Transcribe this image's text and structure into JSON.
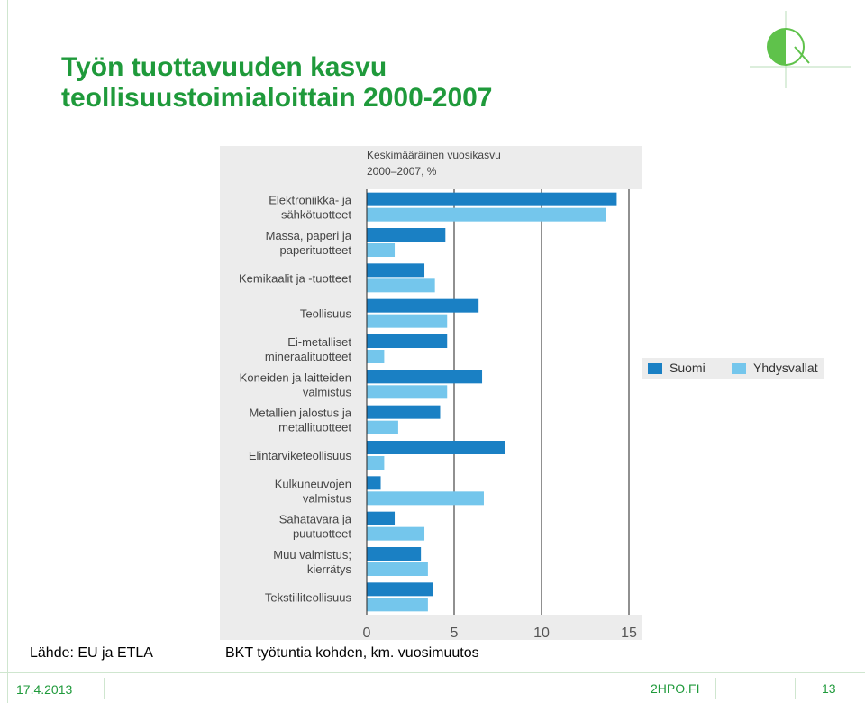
{
  "slide": {
    "title_line1": "Työn tuottavuuden kasvu",
    "title_line2": "teollisuustoimialoittain 2000-2007",
    "source": "Lähde: EU ja ETLA",
    "note": "BKT työtuntia kohden, km. vuosimuutos",
    "date": "17.4.2013",
    "site": "2HPO.FI",
    "page_number": "13",
    "title_color": "#1f9a3b"
  },
  "chart_data": {
    "type": "bar",
    "orientation": "horizontal",
    "title_line1": "Keskimääräinen vuosikasvu",
    "title_line2": "2000–2007, %",
    "categories": [
      [
        "Elektroniikka- ja",
        "sähkötuotteet"
      ],
      [
        "Massa, paperi ja",
        "paperituotteet"
      ],
      [
        "Kemikaalit ja -tuotteet"
      ],
      [
        "Teollisuus"
      ],
      [
        "Ei-metalliset",
        "mineraalituotteet"
      ],
      [
        "Koneiden ja laitteiden",
        "valmistus"
      ],
      [
        "Metallien jalostus ja",
        "metallituotteet"
      ],
      [
        "Elintarviketeollisuus"
      ],
      [
        "Kulkuneuvojen",
        "valmistus"
      ],
      [
        "Sahatavara ja",
        "puutuotteet"
      ],
      [
        "Muu valmistus;",
        "kierrätys"
      ],
      [
        "Tekstiiliteollisuus"
      ]
    ],
    "series": [
      {
        "name": "Suomi",
        "color": "#1a80c4",
        "values": [
          14.3,
          4.5,
          3.3,
          6.4,
          4.6,
          6.6,
          4.2,
          7.9,
          0.8,
          1.6,
          3.1,
          3.8
        ]
      },
      {
        "name": "Yhdysvallat",
        "color": "#74c6ec",
        "values": [
          13.7,
          1.6,
          3.9,
          4.6,
          1.0,
          4.6,
          1.8,
          1.0,
          6.7,
          3.3,
          3.5,
          3.5
        ]
      }
    ],
    "xlim": [
      0,
      15
    ],
    "xticks": [
      "0",
      "5",
      "10",
      "15"
    ],
    "grid": "vertical",
    "legend": "right"
  }
}
